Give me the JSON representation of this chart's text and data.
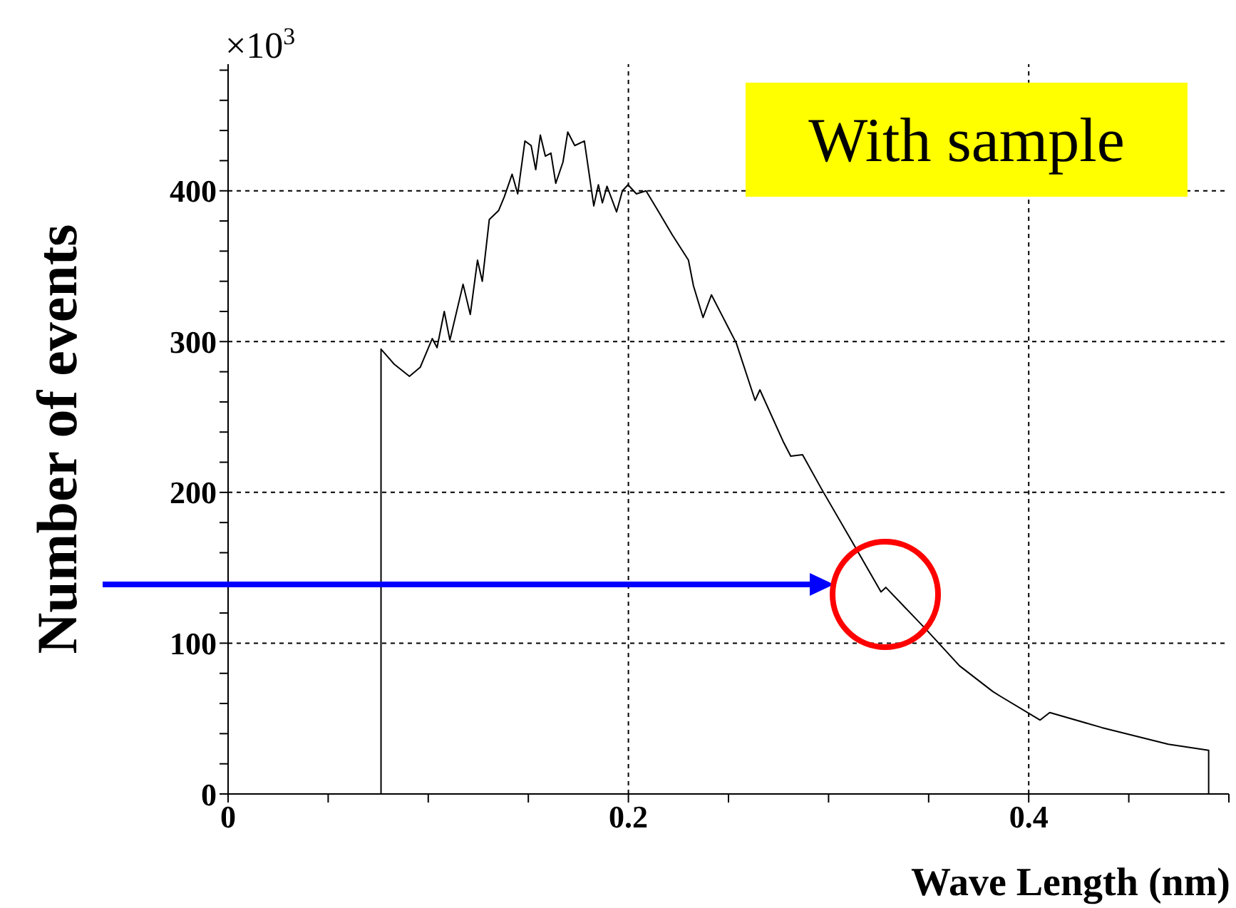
{
  "chart_data": {
    "type": "line",
    "xlabel": "Wave Length (nm)",
    "ylabel": "Number of events",
    "annotations": [
      "×10$^{3}$",
      "With sample"
    ],
    "x": [
      0.0764,
      0.0764,
      0.083,
      0.0906,
      0.096,
      0.102,
      0.1044,
      0.108,
      0.1108,
      0.1174,
      0.121,
      0.1246,
      0.127,
      0.1305,
      0.1352,
      0.138,
      0.1419,
      0.1447,
      0.1483,
      0.1514,
      0.1537,
      0.156,
      0.1585,
      0.1613,
      0.1637,
      0.1673,
      0.1697,
      0.1732,
      0.178,
      0.1803,
      0.1827,
      0.185,
      0.187,
      0.1893,
      0.1941,
      0.197,
      0.1998,
      0.204,
      0.2088,
      0.2147,
      0.2218,
      0.23,
      0.2325,
      0.2373,
      0.2415,
      0.2539,
      0.2633,
      0.2657,
      0.2776,
      0.2811,
      0.287,
      0.2966,
      0.3132,
      0.3262,
      0.3286,
      0.3488,
      0.3654,
      0.382,
      0.3856,
      0.4057,
      0.4105,
      0.4366,
      0.4698,
      0.4899,
      0.4899
    ],
    "series": [
      {
        "color": "#000000",
        "values": [
          0,
          295,
          285,
          277,
          283,
          302,
          296,
          320,
          301,
          338,
          318,
          354,
          340,
          381,
          387,
          396,
          411,
          398,
          433,
          430,
          414,
          437,
          423,
          425,
          405,
          419,
          439,
          430,
          433,
          412,
          390,
          404,
          392,
          403,
          386,
          400,
          404,
          398,
          400,
          387,
          371,
          354,
          337,
          316,
          331,
          299,
          261,
          268,
          233,
          224,
          225,
          202,
          164,
          134,
          137,
          109,
          85,
          68,
          65,
          49,
          54,
          44,
          33,
          29,
          0
        ]
      }
    ],
    "xlim": [
      0,
      0.5
    ],
    "xticks": [
      0,
      {
        "value": 0.05,
        "label": null
      },
      {
        "value": 0.1,
        "label": null
      },
      {
        "value": 0.15,
        "label": null
      },
      {
        "value": 0.2,
        "label": "0.2"
      },
      {
        "value": 0.25,
        "label": null
      },
      {
        "value": 0.3,
        "label": null
      },
      {
        "value": 0.35,
        "label": null
      },
      {
        "value": 0.4,
        "label": "0.4"
      },
      {
        "value": 0.45,
        "label": null
      },
      {
        "value": 0.5,
        "label": null
      }
    ],
    "ylim": [
      0,
      484
    ],
    "yticks": [
      0,
      {
        "value": 20,
        "label": null
      },
      {
        "value": 40,
        "label": null
      },
      {
        "value": 60,
        "label": null
      },
      {
        "value": 80,
        "label": null
      },
      100,
      {
        "value": 120,
        "label": null
      },
      {
        "value": 140,
        "label": null
      },
      {
        "value": 160,
        "label": null
      },
      {
        "value": 180,
        "label": null
      },
      200,
      {
        "value": 220,
        "label": null
      },
      {
        "value": 240,
        "label": null
      },
      {
        "value": 260,
        "label": null
      },
      {
        "value": 280,
        "label": null
      },
      300,
      {
        "value": 320,
        "label": null
      },
      {
        "value": 340,
        "label": null
      },
      {
        "value": 360,
        "label": null
      },
      {
        "value": 380,
        "label": null
      },
      400,
      {
        "value": 420,
        "label": null
      },
      {
        "value": 440,
        "label": null
      },
      {
        "value": 460,
        "label": null
      },
      {
        "value": 480,
        "label": null
      }
    ],
    "grid": true,
    "marker": "none",
    "line_style": "solid"
  }
}
